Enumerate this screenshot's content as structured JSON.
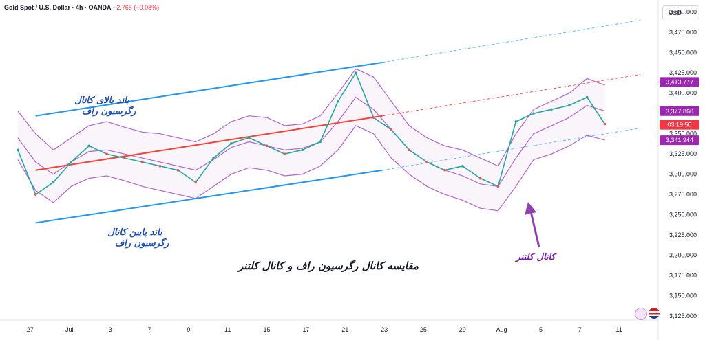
{
  "header": {
    "symbol": "Gold Spot / U.S. Dollar · 4h · OANDA",
    "change": "−2.765 (−0.08%)"
  },
  "currency": "USD",
  "annotations": {
    "upper_band_line1": "باند بالای کانال",
    "upper_band_line2": "رگرسیون راف",
    "lower_band_line1": "باند پایین کانال",
    "lower_band_line2": "رگرسیون راف",
    "title": "مقایسه کانال رگرسیون راف و کانال کلتنر",
    "keltner": "کانال کلتنر"
  },
  "price_tags": [
    {
      "label": "3,413.777",
      "value": 3413.777,
      "color": "#9c27b0"
    },
    {
      "label": "3,377.860",
      "value": 3377.86,
      "color": "#9c27b0"
    },
    {
      "label": "03:19:50",
      "value": 3361,
      "color": "#f23645"
    },
    {
      "label": "3,341.944",
      "value": 3341.944,
      "color": "#9c27b0"
    }
  ],
  "chart_data": {
    "type": "line",
    "ylim": [
      3120,
      3515
    ],
    "y_ticks": [
      "3,500.000",
      "3,475.000",
      "3,450.000",
      "3,425.000",
      "3,400.000",
      "3,375.000",
      "3,350.000",
      "3,325.000",
      "3,300.000",
      "3,275.000",
      "3,250.000",
      "3,225.000",
      "3,200.000",
      "3,175.000",
      "3,150.000",
      "3,125.000"
    ],
    "y_tick_values": [
      3500,
      3475,
      3450,
      3425,
      3400,
      3375,
      3350,
      3325,
      3300,
      3275,
      3250,
      3225,
      3200,
      3175,
      3150,
      3125
    ],
    "x_ticks": [
      "27",
      "Jul",
      "3",
      "7",
      "9",
      "11",
      "15",
      "17",
      "21",
      "23",
      "25",
      "29",
      "Aug",
      "5",
      "7",
      "11"
    ],
    "x_tick_index": [
      0.7,
      2.9,
      5.2,
      7.4,
      9.6,
      11.8,
      14.0,
      16.2,
      18.4,
      20.6,
      22.8,
      25.0,
      27.2,
      29.4,
      31.6,
      33.8
    ],
    "x_range": [
      -1,
      36
    ],
    "price_close": [
      3330,
      3275,
      3290,
      3315,
      3335,
      3325,
      3320,
      3315,
      3310,
      3305,
      3290,
      3320,
      3338,
      3345,
      3335,
      3325,
      3330,
      3340,
      3390,
      3425,
      3370,
      3355,
      3330,
      3315,
      3305,
      3310,
      3295,
      3285,
      3365,
      3375,
      3380,
      3385,
      3395,
      3362
    ],
    "regression_mid": {
      "x": [
        1.0,
        20.5
      ],
      "y": [
        3305,
        3372
      ]
    },
    "regression_mid_ext": {
      "x": [
        20.5,
        35.0
      ],
      "y": [
        3372,
        3423
      ]
    },
    "regression_upper": {
      "x": [
        1.0,
        20.5
      ],
      "y": [
        3372,
        3438
      ]
    },
    "regression_upper_ext": {
      "x": [
        20.5,
        35.0
      ],
      "y": [
        3438,
        3490
      ]
    },
    "regression_lower": {
      "x": [
        1.0,
        20.5
      ],
      "y": [
        3240,
        3305
      ]
    },
    "regression_lower_ext": {
      "x": [
        20.5,
        35.0
      ],
      "y": [
        3305,
        3357
      ]
    },
    "keltner_upper": [
      3378,
      3350,
      3330,
      3345,
      3360,
      3365,
      3358,
      3352,
      3350,
      3345,
      3340,
      3350,
      3365,
      3372,
      3370,
      3360,
      3362,
      3372,
      3400,
      3430,
      3420,
      3390,
      3360,
      3345,
      3335,
      3330,
      3320,
      3310,
      3350,
      3380,
      3390,
      3400,
      3418,
      3410
    ],
    "keltner_mid": [
      3345,
      3315,
      3300,
      3315,
      3328,
      3330,
      3325,
      3320,
      3315,
      3310,
      3305,
      3318,
      3333,
      3340,
      3335,
      3330,
      3332,
      3340,
      3365,
      3395,
      3380,
      3355,
      3330,
      3315,
      3305,
      3298,
      3288,
      3285,
      3320,
      3350,
      3360,
      3370,
      3385,
      3378
    ],
    "keltner_lower": [
      3318,
      3280,
      3265,
      3285,
      3295,
      3298,
      3292,
      3285,
      3280,
      3275,
      3270,
      3285,
      3300,
      3308,
      3305,
      3298,
      3300,
      3310,
      3330,
      3360,
      3350,
      3320,
      3300,
      3285,
      3275,
      3268,
      3258,
      3255,
      3285,
      3318,
      3325,
      3335,
      3348,
      3342
    ]
  }
}
